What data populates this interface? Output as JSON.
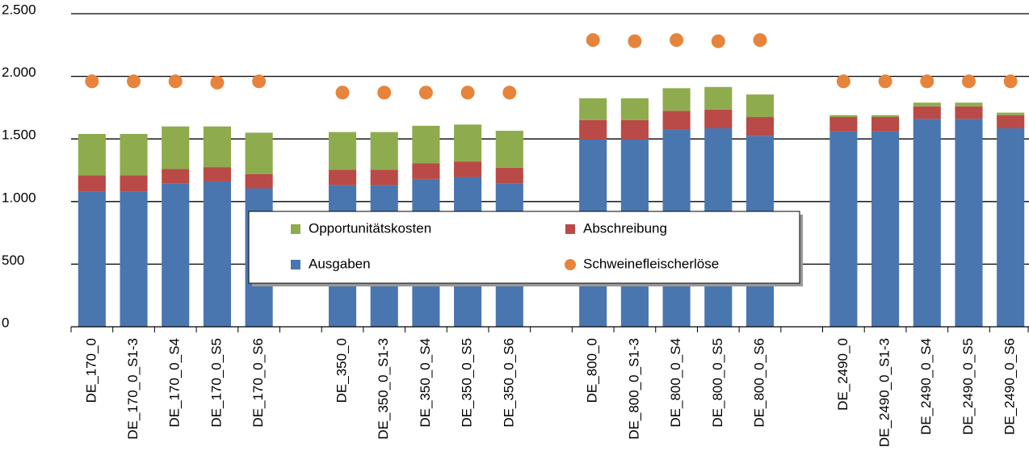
{
  "chart_data": {
    "type": "bar",
    "stacked": true,
    "categories": [
      "DE_170_0",
      "DE_170_0_S1-3",
      "DE_170_0_S4",
      "DE_170_0_S5",
      "DE_170_0_S6",
      null,
      "DE_350_0",
      "DE_350_0_S1-3",
      "DE_350_0_S4",
      "DE_350_0_S5",
      "DE_350_0_S6",
      null,
      "DE_800_0",
      "DE_800_0_S1-3",
      "DE_800_0_S4",
      "DE_800_0_S5",
      "DE_800_0_S6",
      null,
      "DE_2490_0",
      "DE_2490_0_S1-3",
      "DE_2490_0_S4",
      "DE_2490_0_S5",
      "DE_2490_0_S6"
    ],
    "series": [
      {
        "name": "Ausgaben",
        "color": "#4a76b0",
        "type": "bar",
        "values": [
          1080,
          1080,
          1145,
          1160,
          1105,
          null,
          1130,
          1130,
          1180,
          1195,
          1145,
          null,
          1495,
          1495,
          1575,
          1585,
          1525,
          null,
          1560,
          1560,
          1660,
          1660,
          1585
        ]
      },
      {
        "name": "Abschreibung",
        "color": "#b94a48",
        "type": "bar",
        "values": [
          130,
          130,
          115,
          115,
          115,
          null,
          125,
          125,
          125,
          125,
          125,
          null,
          155,
          155,
          150,
          150,
          150,
          null,
          115,
          115,
          100,
          100,
          105
        ]
      },
      {
        "name": "Opportunitätskosten",
        "color": "#8eac4e",
        "type": "bar",
        "values": [
          330,
          330,
          340,
          325,
          330,
          null,
          300,
          300,
          300,
          295,
          295,
          null,
          175,
          175,
          180,
          180,
          180,
          null,
          15,
          15,
          30,
          30,
          20
        ]
      },
      {
        "name": "Schweinefleischerlöse",
        "color": "#e6843c",
        "type": "scatter",
        "values": [
          1960,
          1960,
          1960,
          1950,
          1960,
          null,
          1870,
          1870,
          1870,
          1870,
          1870,
          null,
          2290,
          2280,
          2290,
          2280,
          2290,
          null,
          1960,
          1960,
          1960,
          1960,
          1960
        ]
      }
    ],
    "ylim": [
      0,
      2500
    ],
    "yticks": [
      0,
      500,
      {
        "value": 1000,
        "label": "1.000"
      },
      {
        "value": 1500,
        "label": "1.500"
      },
      {
        "value": 2000,
        "label": "2.000"
      },
      {
        "value": 2500,
        "label": "2.500"
      }
    ],
    "grid": true
  }
}
